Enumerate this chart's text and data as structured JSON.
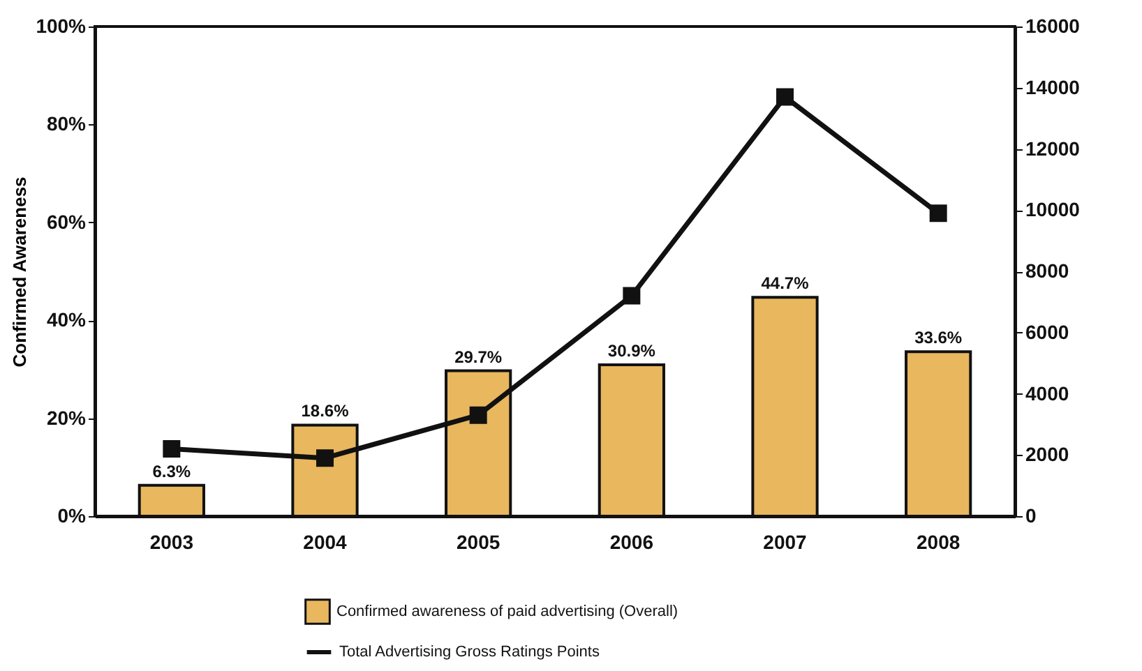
{
  "chart_data": {
    "type": "bar",
    "ylabel": "Confirmed Awareness",
    "categories": [
      "2003",
      "2004",
      "2005",
      "2006",
      "2007",
      "2008"
    ],
    "series": [
      {
        "name": "Confirmed awareness of paid advertising (Overall)",
        "color": "#e8b75e",
        "values": [
          6.3,
          18.6,
          29.7,
          30.9,
          44.7,
          33.6
        ],
        "value_labels": [
          "6.3%",
          "18.6%",
          "29.7%",
          "30.9%",
          "44.7%",
          "33.6%"
        ]
      },
      {
        "name": "Total Advertising Gross Ratings Points",
        "type": "line",
        "axis": "y2",
        "color": "#111111",
        "marker": "square",
        "values": [
          2200,
          1900,
          3300,
          7200,
          13700,
          9900
        ]
      }
    ],
    "ylim": [
      0,
      100
    ],
    "yticks": [
      {
        "value": 0,
        "label": "0%"
      },
      {
        "value": 20,
        "label": "20%"
      },
      {
        "value": 40,
        "label": "40%"
      },
      {
        "value": 60,
        "label": "60%"
      },
      {
        "value": 80,
        "label": "80%"
      },
      {
        "value": 100,
        "label": "100%"
      }
    ],
    "y2lim": [
      0,
      16000
    ],
    "y2ticks": [
      0,
      2000,
      4000,
      6000,
      8000,
      10000,
      12000,
      14000,
      16000
    ],
    "grid": false,
    "legend": "bottom"
  }
}
